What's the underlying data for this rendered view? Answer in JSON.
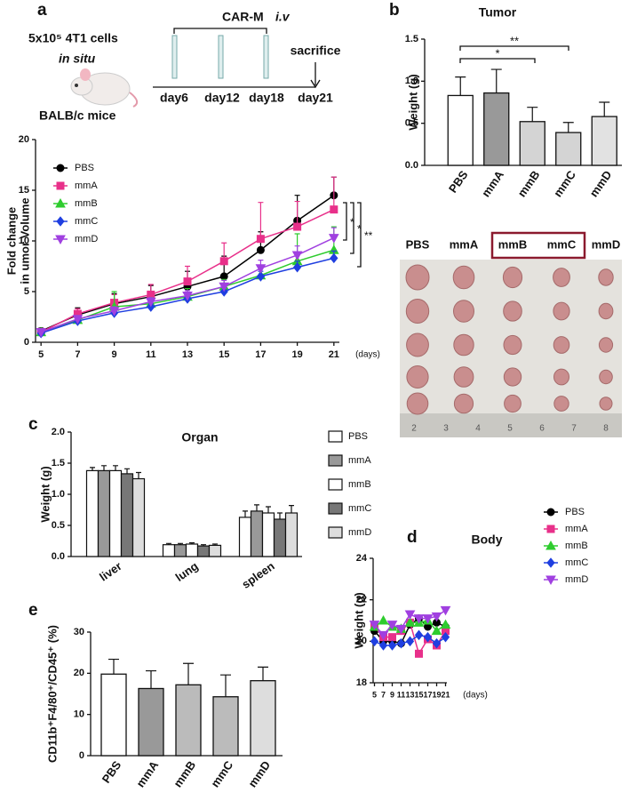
{
  "schematic": {
    "panel": "a",
    "cells": "5x10⁵ 4T1 cells",
    "site": "in situ",
    "mice": "BALB/c mice",
    "treatment": "CAR-M",
    "route": "i.v",
    "days": [
      "day6",
      "day12",
      "day18",
      "day21"
    ],
    "endpoint": "sacrifice"
  },
  "photo": {
    "groups": [
      "PBS",
      "mmA",
      "mmB",
      "mmC",
      "mmD"
    ],
    "ruler": [
      "2",
      "3",
      "4",
      "5",
      "6",
      "7",
      "8"
    ]
  },
  "chart_data": [
    {
      "type": "line",
      "panel": "a",
      "ylabel": [
        "Fold change",
        "in umor Volume"
      ],
      "xlabel": "(days)",
      "x": [
        5,
        7,
        9,
        11,
        13,
        15,
        17,
        19,
        21
      ],
      "xlim": [
        4.7,
        21.3
      ],
      "xticks": [
        5,
        7,
        9,
        11,
        13,
        15,
        17,
        19,
        21
      ],
      "ylim": [
        0,
        20
      ],
      "yticks": [
        0,
        5,
        10,
        15,
        20
      ],
      "legend": "upper left",
      "significance": [
        "*",
        "*",
        "**"
      ],
      "series": [
        {
          "name": "PBS",
          "color": "#000000",
          "marker": "circle",
          "values": [
            1.1,
            2.7,
            3.8,
            4.5,
            5.5,
            6.5,
            9.1,
            12.0,
            14.5
          ],
          "errors": [
            0.3,
            0.7,
            1.0,
            1.1,
            1.5,
            2.0,
            1.8,
            2.5,
            1.8
          ]
        },
        {
          "name": "mmA",
          "color": "#e8308a",
          "marker": "square",
          "values": [
            1.0,
            2.8,
            3.9,
            4.7,
            6.0,
            8.0,
            10.2,
            11.4,
            13.1
          ],
          "errors": [
            0.2,
            0.5,
            0.8,
            1.0,
            1.5,
            1.8,
            3.6,
            2.5,
            3.2
          ]
        },
        {
          "name": "mmB",
          "color": "#2ecc2e",
          "marker": "triangle",
          "values": [
            1.0,
            2.2,
            3.5,
            3.8,
            4.5,
            5.5,
            6.6,
            8.0,
            9.1
          ],
          "errors": [
            0.2,
            0.3,
            1.5,
            0.6,
            0.8,
            0.7,
            0.8,
            2.7,
            2.3
          ]
        },
        {
          "name": "mmC",
          "color": "#1f3fe0",
          "marker": "diamond",
          "values": [
            0.9,
            2.1,
            2.9,
            3.5,
            4.3,
            5.0,
            6.5,
            7.4,
            8.3
          ],
          "errors": [
            0.1,
            0.2,
            0.3,
            0.3,
            0.4,
            0.4,
            0.5,
            0.6,
            0.7
          ]
        },
        {
          "name": "mmD",
          "color": "#a040e0",
          "marker": "triangle-down",
          "values": [
            1.0,
            2.3,
            3.1,
            4.0,
            4.6,
            5.5,
            7.3,
            8.6,
            10.3
          ],
          "errors": [
            0.1,
            0.3,
            0.4,
            0.4,
            0.5,
            0.6,
            0.8,
            0.9,
            1.0
          ]
        }
      ]
    },
    {
      "type": "bar",
      "panel": "b",
      "title": "Tumor",
      "ylabel": "Weight (g)",
      "categories": [
        "PBS",
        "mmA",
        "mmB",
        "mmC",
        "mmD"
      ],
      "values": [
        0.83,
        0.86,
        0.52,
        0.39,
        0.58
      ],
      "errors": [
        0.22,
        0.28,
        0.17,
        0.12,
        0.17
      ],
      "colors": [
        "#ffffff",
        "#999999",
        "#d4d4d4",
        "#d4d4d4",
        "#e2e2e2"
      ],
      "ylim": [
        0,
        1.5
      ],
      "yticks": [
        {
          "value": 0,
          "label": "0.0"
        },
        {
          "value": 0.5,
          "label": "0.5"
        },
        {
          "value": 1,
          "label": "1.0"
        },
        {
          "value": 1.5,
          "label": "1.5"
        }
      ],
      "significance": [
        "*",
        "**"
      ]
    },
    {
      "type": "bar",
      "panel": "c",
      "title": "Organ",
      "ylabel": "Weight (g)",
      "categories": [
        "liver",
        "lung",
        "spleen"
      ],
      "ylim": [
        0,
        2
      ],
      "yticks": [
        {
          "value": 0,
          "label": "0.0"
        },
        {
          "value": 0.5,
          "label": "0.5"
        },
        {
          "value": 1,
          "label": "1.0"
        },
        {
          "value": 1.5,
          "label": "1.5"
        },
        {
          "value": 2,
          "label": "2.0"
        }
      ],
      "legend": "right",
      "series": [
        {
          "name": "PBS",
          "color": "#ffffff",
          "values": [
            1.38,
            0.19,
            0.63
          ],
          "errors": [
            0.05,
            0.02,
            0.1
          ]
        },
        {
          "name": "mmA",
          "color": "#999999",
          "values": [
            1.38,
            0.19,
            0.73
          ],
          "errors": [
            0.08,
            0.02,
            0.1
          ]
        },
        {
          "name": "mmB",
          "color": "#ffffff",
          "values": [
            1.38,
            0.2,
            0.7
          ],
          "errors": [
            0.08,
            0.02,
            0.1
          ]
        },
        {
          "name": "mmC",
          "color": "#777777",
          "values": [
            1.33,
            0.17,
            0.6
          ],
          "errors": [
            0.08,
            0.02,
            0.1
          ]
        },
        {
          "name": "mmD",
          "color": "#dddddd",
          "values": [
            1.25,
            0.18,
            0.7
          ],
          "errors": [
            0.1,
            0.02,
            0.12
          ]
        }
      ]
    },
    {
      "type": "line",
      "panel": "d",
      "title": "Body",
      "ylabel": "Weight (g)",
      "xlabel": "(days)",
      "x": [
        5,
        7,
        9,
        11,
        13,
        15,
        17,
        19,
        21
      ],
      "xlim": [
        4.7,
        21.3
      ],
      "xticks": [
        5,
        7,
        9,
        11,
        13,
        15,
        17,
        19,
        21
      ],
      "ylim": [
        18,
        24
      ],
      "yticks": [
        18,
        20,
        22,
        24
      ],
      "legend": "upper right",
      "series": [
        {
          "name": "PBS",
          "color": "#000000",
          "marker": "circle",
          "values": [
            20.5,
            20.0,
            20.0,
            19.9,
            20.8,
            21.1,
            20.7,
            20.9,
            20.7
          ]
        },
        {
          "name": "mmA",
          "color": "#e8308a",
          "marker": "square",
          "values": [
            20.7,
            20.2,
            20.2,
            20.5,
            20.9,
            19.4,
            20.1,
            19.8,
            20.5
          ]
        },
        {
          "name": "mmB",
          "color": "#2ecc2e",
          "marker": "triangle",
          "values": [
            20.7,
            21.0,
            20.7,
            20.6,
            20.9,
            20.9,
            21.0,
            20.5,
            20.8
          ]
        },
        {
          "name": "mmC",
          "color": "#1f3fe0",
          "marker": "diamond",
          "values": [
            20.0,
            19.8,
            19.8,
            19.9,
            20.0,
            20.3,
            20.2,
            19.9,
            20.2
          ]
        },
        {
          "name": "mmD",
          "color": "#a040e0",
          "marker": "triangle-down",
          "values": [
            20.8,
            20.3,
            20.8,
            20.6,
            21.3,
            21.1,
            21.1,
            21.2,
            21.5
          ]
        }
      ]
    },
    {
      "type": "bar",
      "panel": "e",
      "ylabel": "CD11b⁺F4/80⁺/CD45⁺ (%)",
      "categories": [
        "PBS",
        "mmA",
        "mmB",
        "mmC",
        "mmD"
      ],
      "values": [
        19.8,
        16.3,
        17.2,
        14.3,
        18.2
      ],
      "errors": [
        3.6,
        4.3,
        5.2,
        5.3,
        3.3
      ],
      "colors": [
        "#ffffff",
        "#999999",
        "#bbbbbb",
        "#bbbbbb",
        "#dddddd"
      ],
      "ylim": [
        0,
        30
      ],
      "yticks": [
        0,
        10,
        20,
        30
      ]
    }
  ]
}
